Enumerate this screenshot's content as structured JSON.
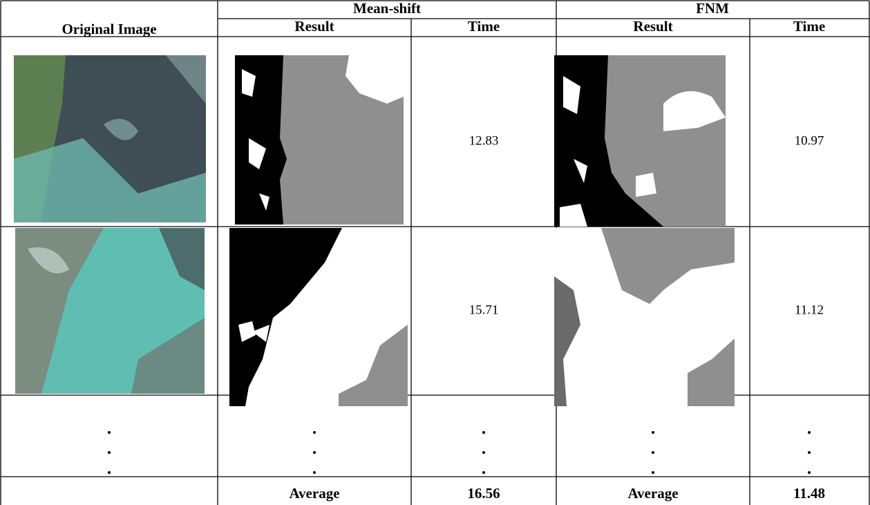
{
  "header": {
    "original": "Original Image",
    "methods": [
      "Mean-shift",
      "FNM"
    ],
    "subheaders": [
      "Result",
      "Time",
      "Result",
      "Time"
    ]
  },
  "table": {
    "rows": [
      {
        "times": [
          "12.83",
          "10.97"
        ]
      },
      {
        "times": [
          "15.71",
          "11.12"
        ]
      }
    ],
    "average": {
      "labels": [
        "Average",
        "Average"
      ],
      "values": [
        "16.56",
        "11.48"
      ]
    }
  }
}
